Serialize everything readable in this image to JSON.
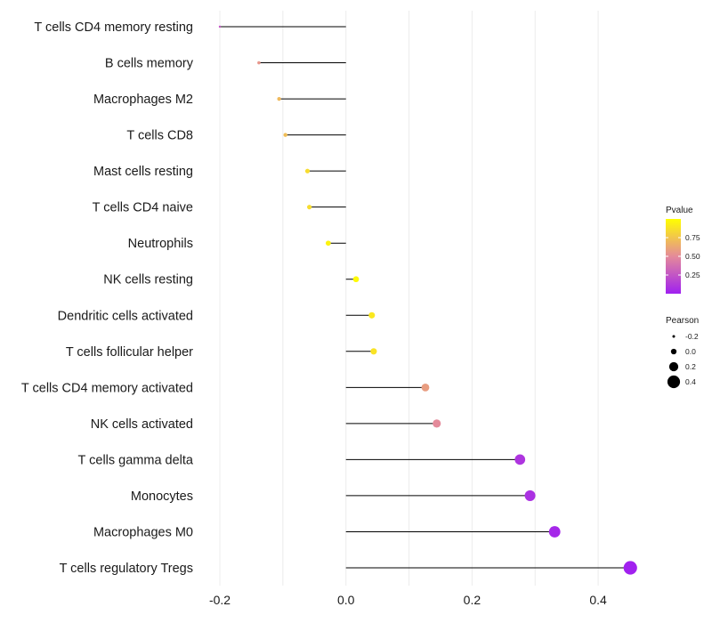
{
  "chart_data": {
    "type": "lollipop",
    "categories": [
      "T cells CD4 memory resting",
      "B cells memory",
      "Macrophages M2",
      "T cells CD8",
      "Mast cells resting",
      "T cells CD4 naive",
      "Neutrophils",
      "NK cells resting",
      "Dendritic cells activated",
      "T cells follicular helper",
      "T cells CD4 memory activated",
      "NK cells activated",
      "T cells gamma delta",
      "Monocytes",
      "Macrophages M0",
      "T cells regulatory  Tregs"
    ],
    "pearson": [
      -0.2,
      -0.138,
      -0.106,
      -0.096,
      -0.061,
      -0.058,
      -0.028,
      0.016,
      0.041,
      0.044,
      0.126,
      0.144,
      0.276,
      0.292,
      0.331,
      0.451
    ],
    "pvalue": [
      0.25,
      0.55,
      0.7,
      0.72,
      0.85,
      0.85,
      0.95,
      0.98,
      0.9,
      0.88,
      0.58,
      0.5,
      0.1,
      0.08,
      0.04,
      0.005
    ],
    "x_ticks": [
      "-0.2",
      "0.0",
      "0.2",
      "0.4"
    ],
    "x_tick_values": [
      -0.2,
      0.0,
      0.2,
      0.4
    ],
    "xlim": [
      -0.225,
      0.46
    ],
    "xlabel": "",
    "ylabel": "",
    "title": "",
    "grid": true,
    "legend_color": {
      "title": "Pvalue",
      "ticks": [
        "0.75",
        "0.50",
        "0.25"
      ],
      "tick_values": [
        0.75,
        0.5,
        0.25
      ],
      "range": [
        0,
        1
      ],
      "low_color": "#a020f0",
      "mid_color": "#e48a9a",
      "high_color": "#ffff00"
    },
    "legend_size": {
      "title": "Pearson",
      "labels": [
        "-0.2",
        "0.0",
        "0.2",
        "0.4"
      ],
      "values": [
        -0.2,
        0.0,
        0.2,
        0.4
      ]
    },
    "legend_placement": "right"
  }
}
